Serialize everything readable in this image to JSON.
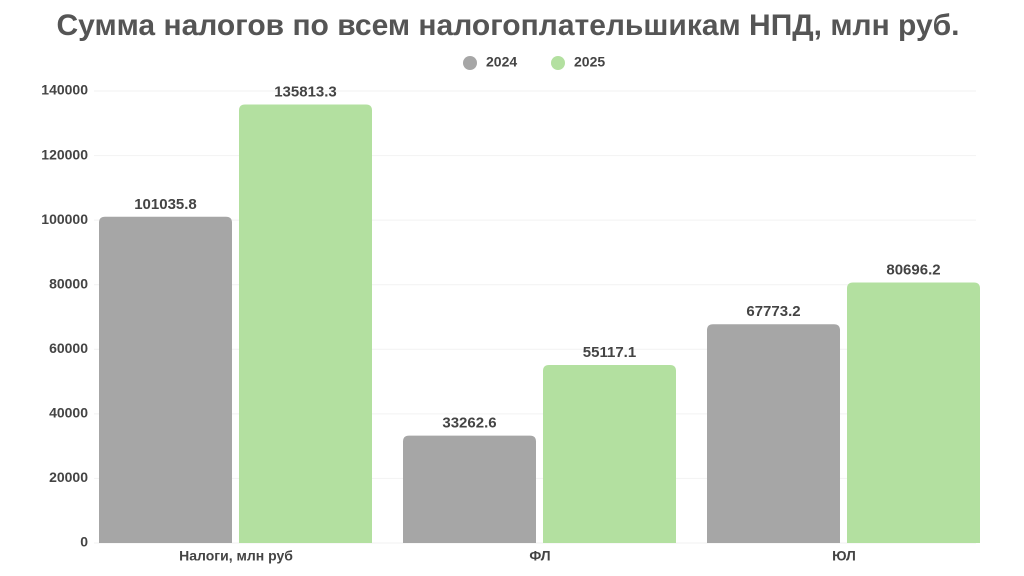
{
  "chart_data": {
    "type": "bar",
    "title": "Сумма налогов по всем налогоплательшикам НПД, млн руб.",
    "categories": [
      "Налоги, млн руб",
      "ФЛ",
      "ЮЛ"
    ],
    "series": [
      {
        "name": "2024",
        "color": "#a6a6a6",
        "values": [
          101035.8,
          33262.6,
          67773.2
        ]
      },
      {
        "name": "2025",
        "color": "#b3e0a0",
        "values": [
          135813.3,
          55117.1,
          80696.2
        ]
      }
    ],
    "ylim": [
      0,
      140000
    ],
    "yticks": [
      0,
      20000,
      40000,
      60000,
      80000,
      100000,
      120000,
      140000
    ],
    "grid": true,
    "legend": "top"
  }
}
